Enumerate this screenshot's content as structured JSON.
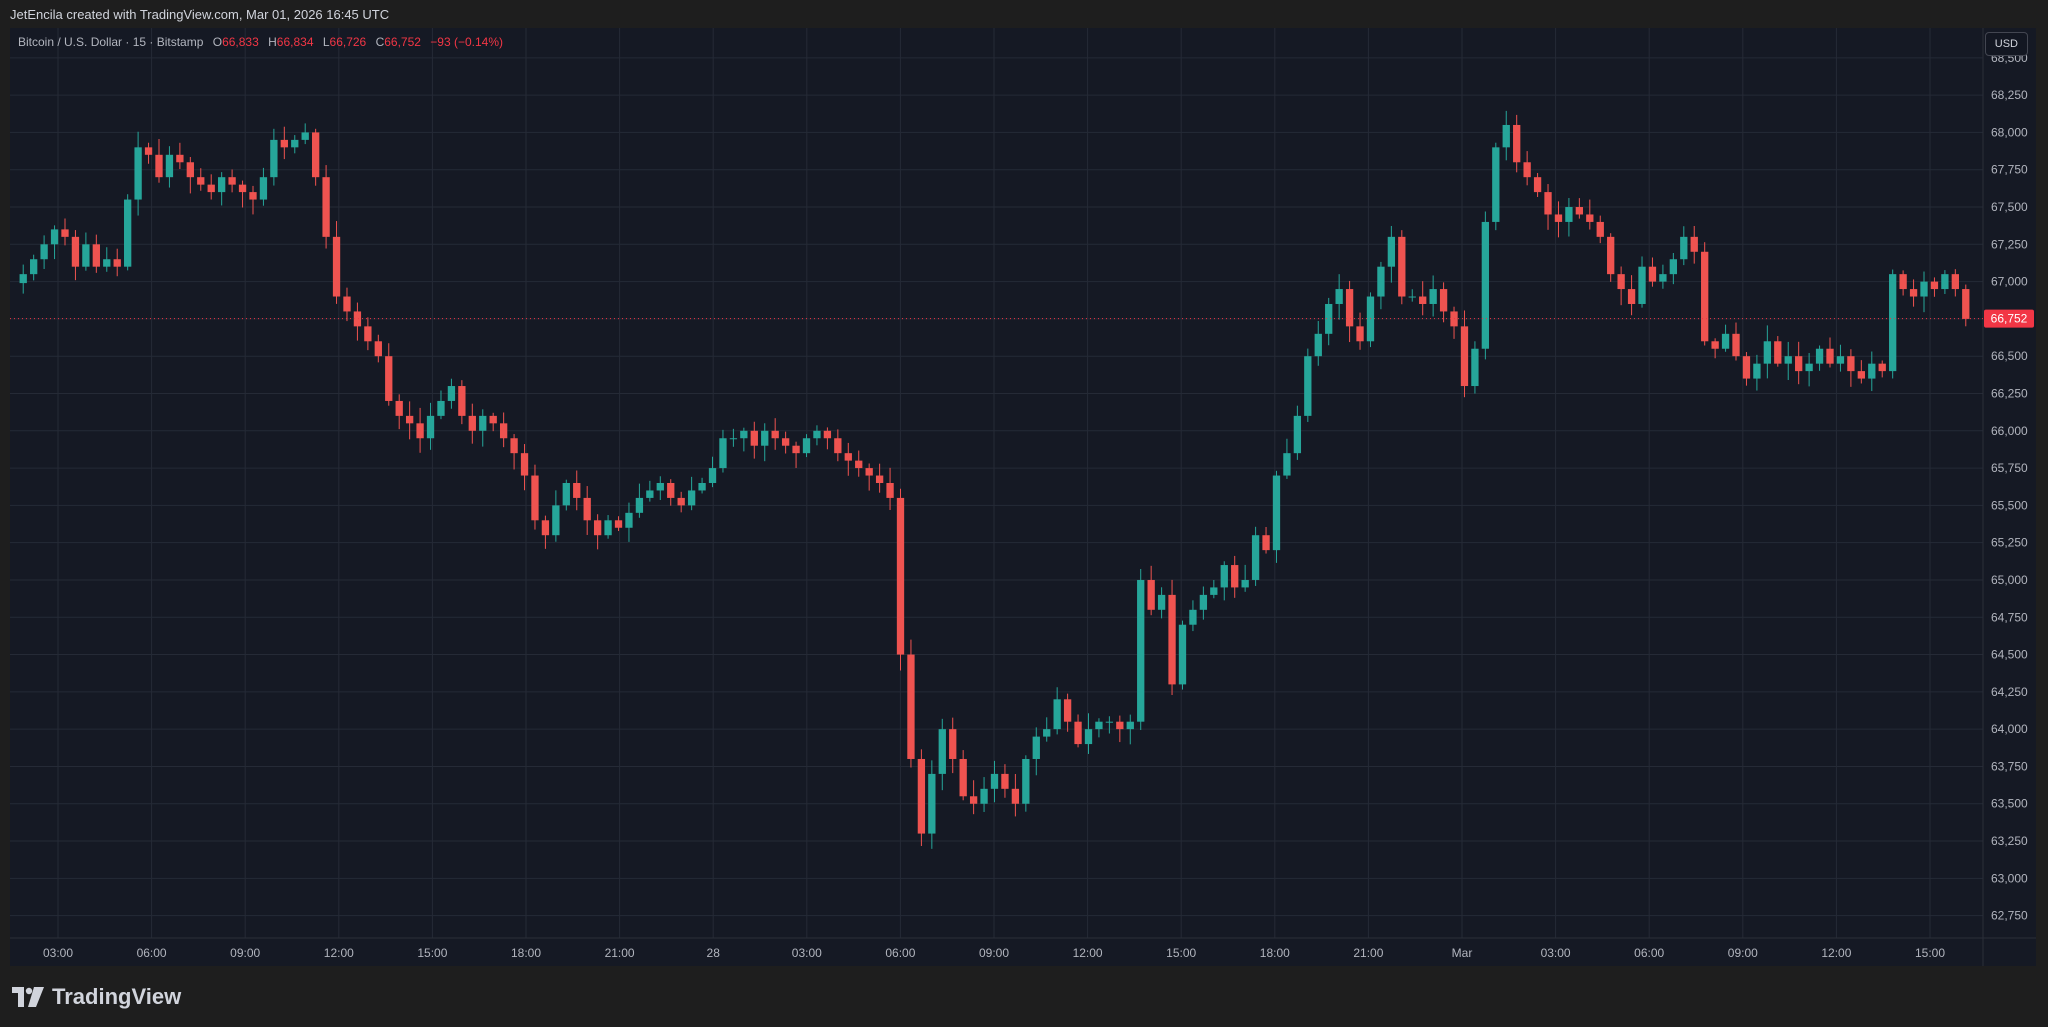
{
  "header": {
    "credit": "JetEncila created with TradingView.com, Mar 01, 2026 16:45 UTC"
  },
  "legend": {
    "symbol": "Bitcoin / U.S. Dollar · 15 · Bitstamp",
    "o_label": "O",
    "o_value": "66,833",
    "h_label": "H",
    "h_value": "66,834",
    "l_label": "L",
    "l_value": "66,726",
    "c_label": "C",
    "c_value": "66,752",
    "change": "−93 (−0.14%)"
  },
  "price_axis": {
    "currency_button": "USD",
    "last_price_label": "66,752"
  },
  "brand": {
    "name": "TradingView"
  },
  "colors": {
    "up": "#26a69a",
    "down": "#ef5350",
    "background": "#151924",
    "grid": "#252a36",
    "text": "#b2b5be",
    "last_price": "#f23645"
  },
  "chart_data": {
    "type": "candlestick",
    "title": "Bitcoin / U.S. Dollar · 15 · Bitstamp",
    "ylim": [
      62600,
      68700
    ],
    "y_ticks": [
      62750,
      63000,
      63250,
      63500,
      63750,
      64000,
      64250,
      64500,
      64750,
      65000,
      65250,
      65500,
      65750,
      66000,
      66250,
      66500,
      66750,
      67000,
      67250,
      67500,
      67750,
      68000,
      68250,
      68500
    ],
    "y_tick_labels": [
      "62,750",
      "63,000",
      "63,250",
      "63,500",
      "63,750",
      "64,000",
      "64,250",
      "64,500",
      "64,750",
      "65,000",
      "65,250",
      "65,500",
      "65,750",
      "66,000",
      "66,250",
      "66,500",
      "66,750",
      "67,000",
      "67,250",
      "67,500",
      "67,750",
      "68,000",
      "68,250",
      "68,500"
    ],
    "x_ticks": [
      "03:00",
      "06:00",
      "09:00",
      "12:00",
      "15:00",
      "18:00",
      "21:00",
      "28",
      "03:00",
      "06:00",
      "09:00",
      "12:00",
      "15:00",
      "18:00",
      "21:00",
      "Mar",
      "03:00",
      "06:00",
      "09:00",
      "12:00",
      "15:00"
    ],
    "last_price": 66752,
    "close_series": [
      67050,
      67150,
      67250,
      67350,
      67300,
      67100,
      67250,
      67100,
      67150,
      67100,
      67550,
      67900,
      67850,
      67700,
      67850,
      67800,
      67700,
      67650,
      67600,
      67700,
      67650,
      67600,
      67550,
      67700,
      67950,
      67900,
      67950,
      68000,
      67700,
      67300,
      66900,
      66800,
      66700,
      66600,
      66500,
      66200,
      66100,
      66050,
      65950,
      66100,
      66200,
      66300,
      66100,
      66000,
      66100,
      66050,
      65950,
      65850,
      65700,
      65400,
      65300,
      65500,
      65650,
      65550,
      65400,
      65300,
      65400,
      65350,
      65450,
      65550,
      65600,
      65650,
      65550,
      65500,
      65600,
      65650,
      65750,
      65950,
      65950,
      66000,
      65900,
      66000,
      65950,
      65900,
      65850,
      65950,
      66000,
      65950,
      65850,
      65800,
      65750,
      65700,
      65650,
      65550,
      64500,
      63800,
      63300,
      63700,
      64000,
      63800,
      63550,
      63500,
      63600,
      63700,
      63600,
      63500,
      63800,
      63950,
      64000,
      64200,
      64050,
      63900,
      64000,
      64050,
      64050,
      64000,
      64050,
      65000,
      64800,
      64900,
      64300,
      64700,
      64800,
      64900,
      64950,
      65100,
      64950,
      65000,
      65300,
      65200,
      65700,
      65850,
      66100,
      66500,
      66650,
      66850,
      66950,
      66700,
      66600,
      66900,
      67100,
      67300,
      66900,
      66900,
      66850,
      66950,
      66800,
      66700,
      66300,
      66550,
      67400,
      67900,
      68050,
      67800,
      67700,
      67600,
      67450,
      67400,
      67500,
      67450,
      67400,
      67300,
      67050,
      66950,
      66850,
      67100,
      67000,
      67050,
      67150,
      67300,
      67200,
      66600,
      66550,
      66650,
      66500,
      66350,
      66450,
      66600,
      66450,
      66500,
      66400,
      66450,
      66550,
      66450,
      66500,
      66400,
      66350,
      66450,
      66400,
      67050,
      66950,
      66900,
      67000,
      66950,
      67050,
      66950,
      66750
    ]
  }
}
